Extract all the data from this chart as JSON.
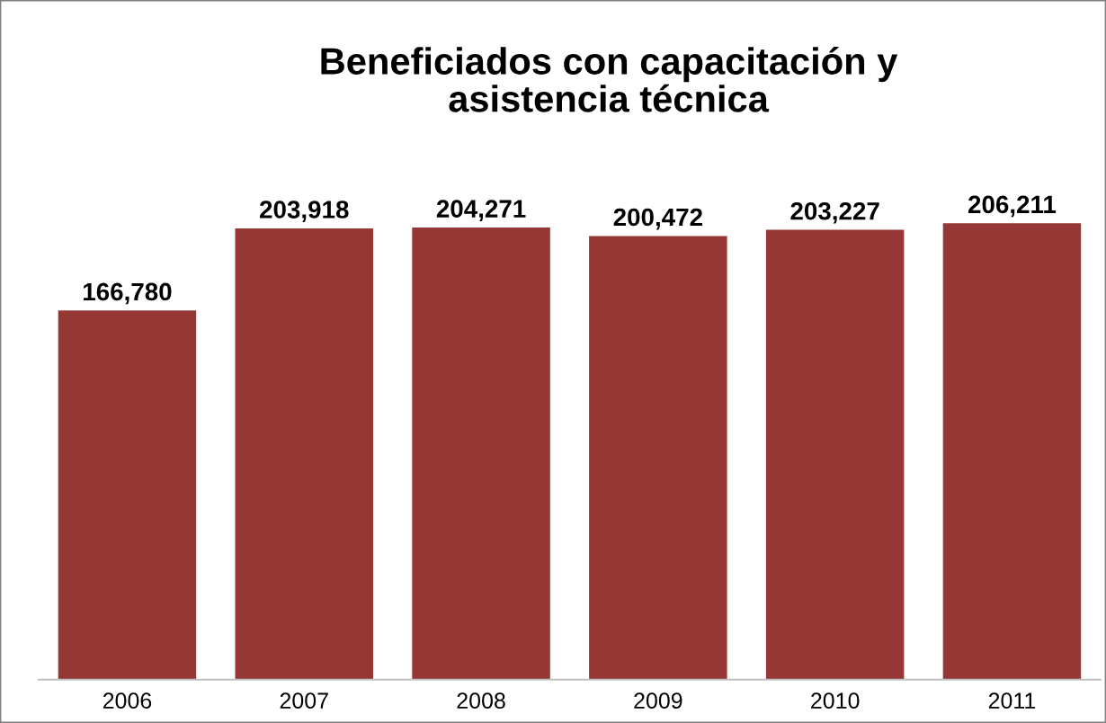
{
  "chart_data": {
    "type": "bar",
    "title": "Beneficiados con capacitación y\nasistencia técnica",
    "categories": [
      "2006",
      "2007",
      "2008",
      "2009",
      "2010",
      "2011"
    ],
    "values": [
      166780,
      203918,
      204271,
      200472,
      203227,
      206211
    ],
    "value_labels": [
      "166,780",
      "203,918",
      "204,271",
      "200,472",
      "203,227",
      "206,211"
    ],
    "color": "#953735"
  }
}
